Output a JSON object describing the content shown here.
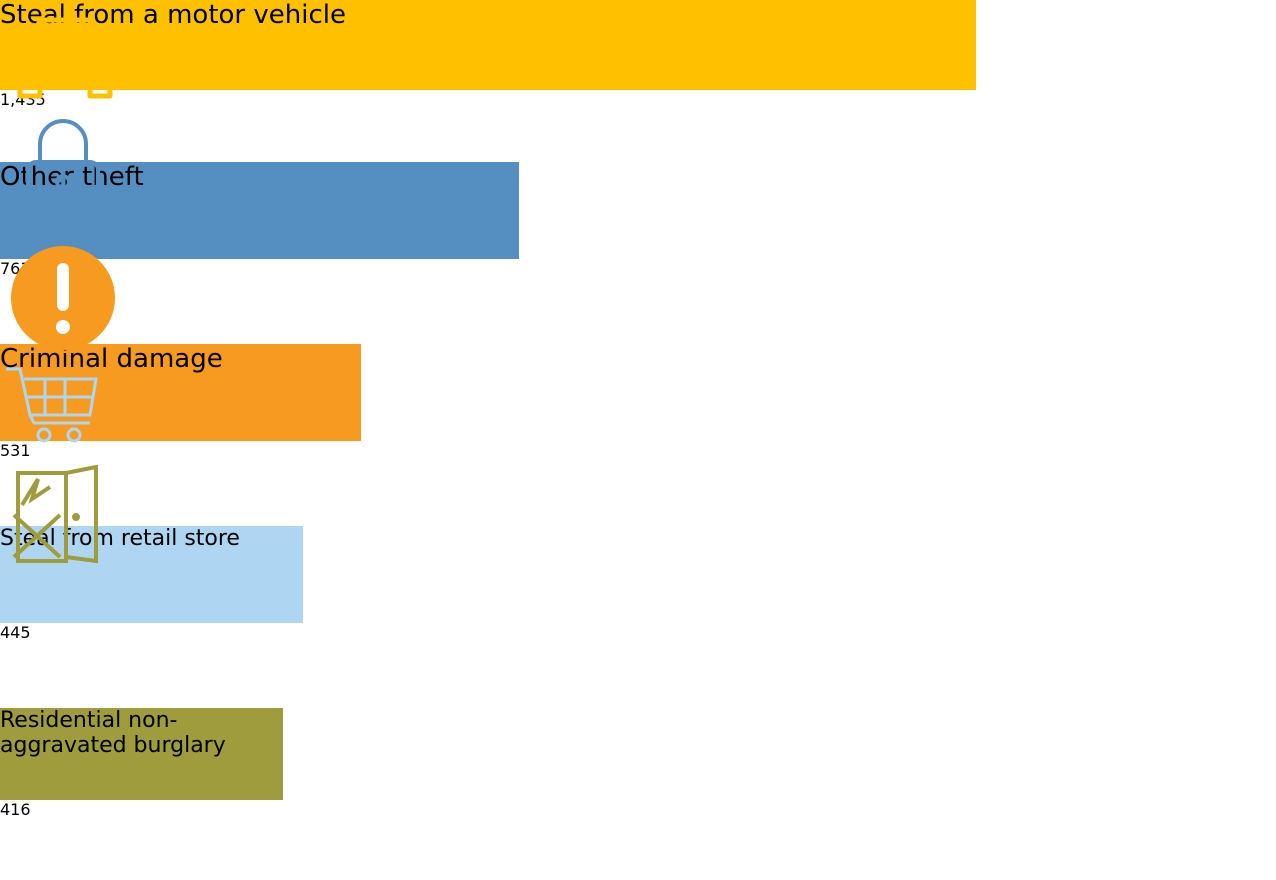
{
  "chart_data": {
    "type": "bar",
    "orientation": "horizontal",
    "categories": [
      "Steal from a motor vehicle",
      "Other theft",
      "Criminal damage",
      "Steal from retail store",
      "Residential non-aggravated burglary"
    ],
    "values": [
      1435,
      763,
      531,
      445,
      416
    ],
    "value_labels": [
      "1,435",
      "763",
      "531",
      "445",
      "416"
    ],
    "colors": [
      "#ffc000",
      "#558fc1",
      "#f69b1f",
      "#aed6f2",
      "#9e9c3c"
    ]
  }
}
